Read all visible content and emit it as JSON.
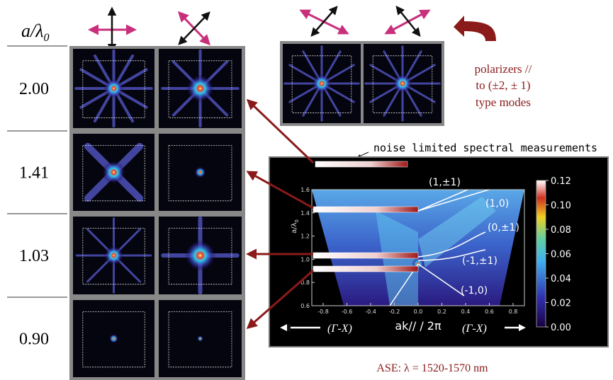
{
  "figure": {
    "header": {
      "param_label": "a/λ",
      "param_sub": "0"
    },
    "rows": [
      {
        "label": "2.00"
      },
      {
        "label": "1.41"
      },
      {
        "label": "1.03"
      },
      {
        "label": "0.90"
      }
    ],
    "polarizer_note": [
      "polarizers //",
      "to (±2, ± 1)",
      "type modes"
    ],
    "noise_note": "noise limited spectral measurements",
    "spectral_plot": {
      "y_label": "a/λ",
      "y_label_sub": "0",
      "yticks": [
        "0.6",
        "0.8",
        "1.0",
        "1.2",
        "1.4",
        "1.6"
      ],
      "xticks": [
        "-0.8",
        "-0.6",
        "-0.4",
        "-0.2",
        "0.0",
        "0.2",
        "0.4",
        "0.6",
        "0.8"
      ],
      "x_label": "ak// / 2π",
      "left_direction": "(Γ-X)",
      "right_direction": "(Γ-X)",
      "colorbar_ticks": [
        "0.00",
        "0.02",
        "0.04",
        "0.06",
        "0.08",
        "0.10",
        "0.12"
      ],
      "mode_labels": [
        "(1,±1)",
        "(1,0)",
        "(0,±1)",
        "(-1,±1)",
        "(-1,0)"
      ]
    },
    "source_note": "ASE: λ = 1520-1570 nm"
  }
}
